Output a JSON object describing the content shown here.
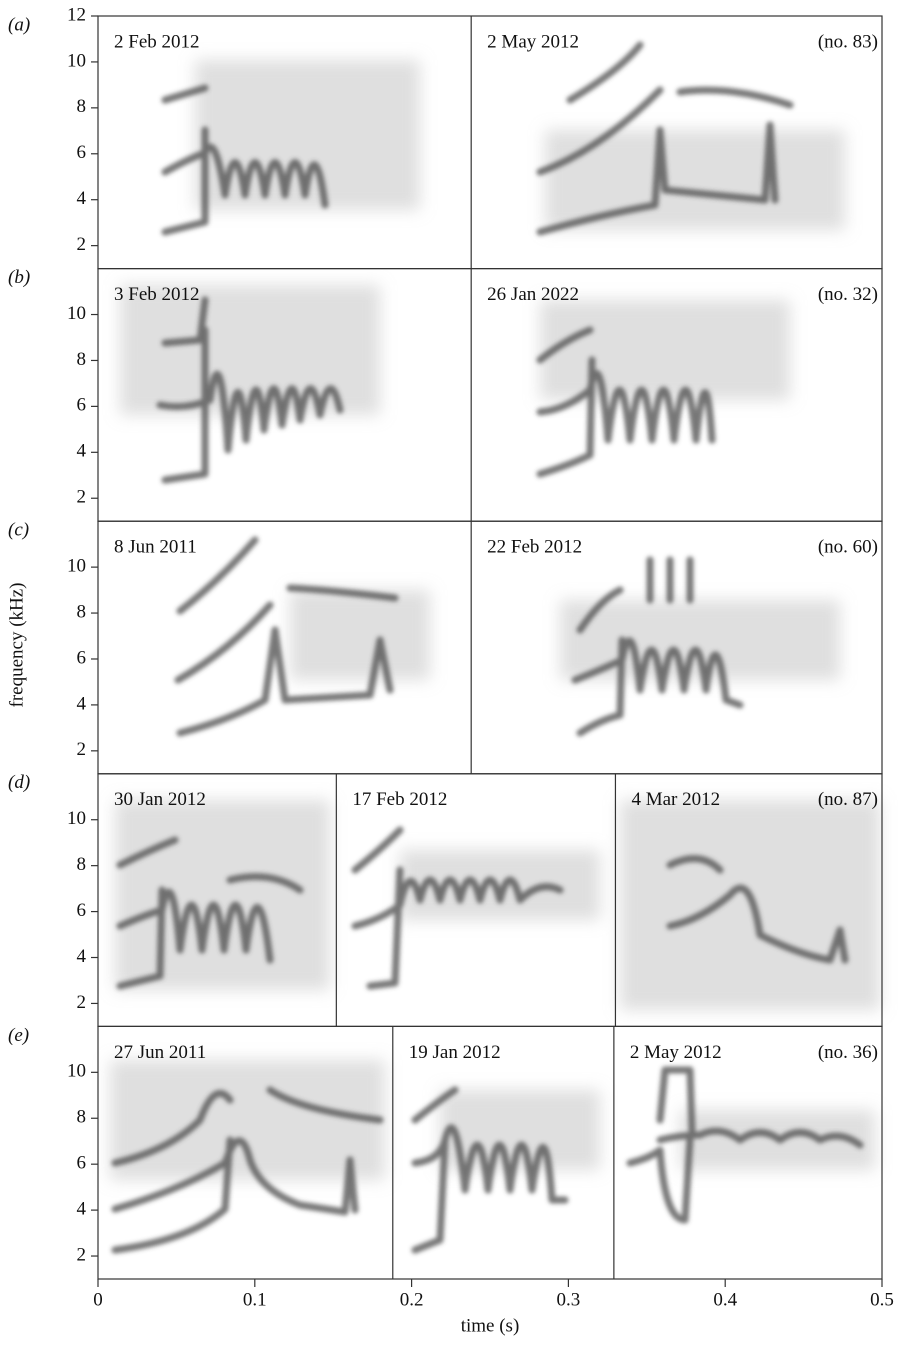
{
  "chart_data": {
    "type": "spectrogram",
    "x_label": "time (s)",
    "y_label": "frequency (kHz)",
    "xlim": [
      0,
      0.5
    ],
    "xticks": [
      0,
      0.1,
      0.2,
      0.3,
      0.4,
      0.5
    ],
    "rows": [
      {
        "label": "(a)",
        "ylim": [
          1,
          12
        ],
        "yticks": [
          2,
          4,
          6,
          8,
          10,
          12
        ],
        "number": "(no. 83)",
        "dividers": [
          0.238
        ],
        "dates": [
          "2 Feb 2012",
          "2 May 2012"
        ]
      },
      {
        "label": "(b)",
        "ylim": [
          1,
          12
        ],
        "yticks": [
          2,
          4,
          6,
          8,
          10
        ],
        "number": "(no. 32)",
        "dividers": [
          0.238
        ],
        "dates": [
          "3 Feb 2012",
          "26 Jan 2022"
        ]
      },
      {
        "label": "(c)",
        "ylim": [
          1,
          12
        ],
        "yticks": [
          2,
          4,
          6,
          8,
          10
        ],
        "number": "(no. 60)",
        "dividers": [
          0.238
        ],
        "dates": [
          "8 Jun 2011",
          "22 Feb 2012"
        ]
      },
      {
        "label": "(d)",
        "ylim": [
          1,
          12
        ],
        "yticks": [
          2,
          4,
          6,
          8,
          10
        ],
        "number": "(no. 87)",
        "dividers": [
          0.152,
          0.33
        ],
        "dates": [
          "30 Jan 2012",
          "17 Feb 2012",
          "4 Mar 2012"
        ]
      },
      {
        "label": "(e)",
        "ylim": [
          1,
          12
        ],
        "yticks": [
          2,
          4,
          6,
          8,
          10
        ],
        "number": "(no. 36)",
        "dividers": [
          0.188,
          0.329
        ],
        "dates": [
          "27 Jun 2011",
          "19 Jan 2012",
          "2 May 2012"
        ]
      }
    ]
  }
}
